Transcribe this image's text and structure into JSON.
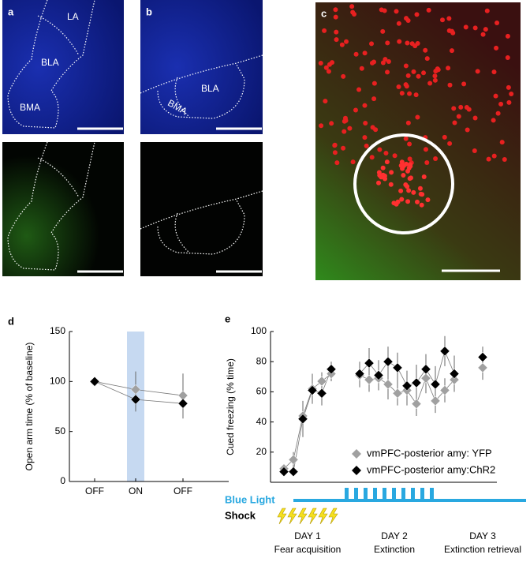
{
  "figure": {
    "panel_labels": [
      "a",
      "b",
      "c"
    ],
    "a_regions": [
      "LA",
      "BLA",
      "BMA"
    ],
    "b_regions": [
      "BLA",
      "BMA"
    ]
  },
  "chart_data": [
    {
      "type": "line",
      "panel_label": "d",
      "ylabel": "Open arm time (% of baseline)",
      "categories": [
        "OFF",
        "ON",
        "OFF"
      ],
      "highlight": {
        "category": "ON",
        "color": "#c6d9f1"
      },
      "series": [
        {
          "color": "#a0a0a0",
          "values": [
            100,
            92,
            86
          ],
          "errors": [
            null,
            18,
            22
          ]
        },
        {
          "color": "#000000",
          "values": [
            100,
            82,
            78
          ],
          "errors": [
            null,
            12,
            15
          ]
        }
      ],
      "ylim": [
        0,
        150
      ],
      "yticks": [
        0,
        50,
        100,
        150
      ]
    },
    {
      "type": "line",
      "panel_label": "e",
      "ylabel": "Cued freezing (% time)",
      "categories": [
        null,
        null,
        null,
        null,
        null,
        null,
        null,
        null,
        null,
        null,
        null,
        null,
        null,
        null,
        null,
        null,
        null,
        null
      ],
      "series": [
        {
          "name": "vmPFC-posterior amy: YFP",
          "color": "#a0a0a0",
          "values": [
            9,
            15,
            44,
            62,
            67,
            72,
            71,
            68,
            69,
            65,
            59,
            61,
            52,
            69,
            54,
            61,
            68,
            76
          ],
          "errors": [
            3,
            5,
            8,
            10,
            6,
            5,
            8,
            8,
            8,
            10,
            8,
            10,
            8,
            10,
            8,
            8,
            8,
            8
          ]
        },
        {
          "name": "vmPFC-posterior amy:ChR2",
          "color": "#000000",
          "values": [
            7,
            7,
            42,
            61,
            59,
            75,
            72,
            79,
            71,
            80,
            76,
            64,
            66,
            75,
            65,
            87,
            72,
            83
          ],
          "errors": [
            2,
            3,
            12,
            8,
            8,
            5,
            8,
            10,
            10,
            10,
            10,
            10,
            12,
            10,
            12,
            10,
            12,
            7
          ]
        }
      ],
      "ylim": [
        0,
        100
      ],
      "yticks": [
        20,
        40,
        60,
        80,
        100
      ],
      "legend": "bottom-right",
      "light_label": "Blue Light",
      "light_color": "#29a8e0",
      "shock_label": "Shock",
      "days": [
        {
          "label": "DAY 1",
          "caption": "Fear acquisition"
        },
        {
          "label": "DAY 2",
          "caption": "Extinction"
        },
        {
          "label": "DAY 3",
          "caption": "Extinction retrieval"
        }
      ]
    }
  ]
}
